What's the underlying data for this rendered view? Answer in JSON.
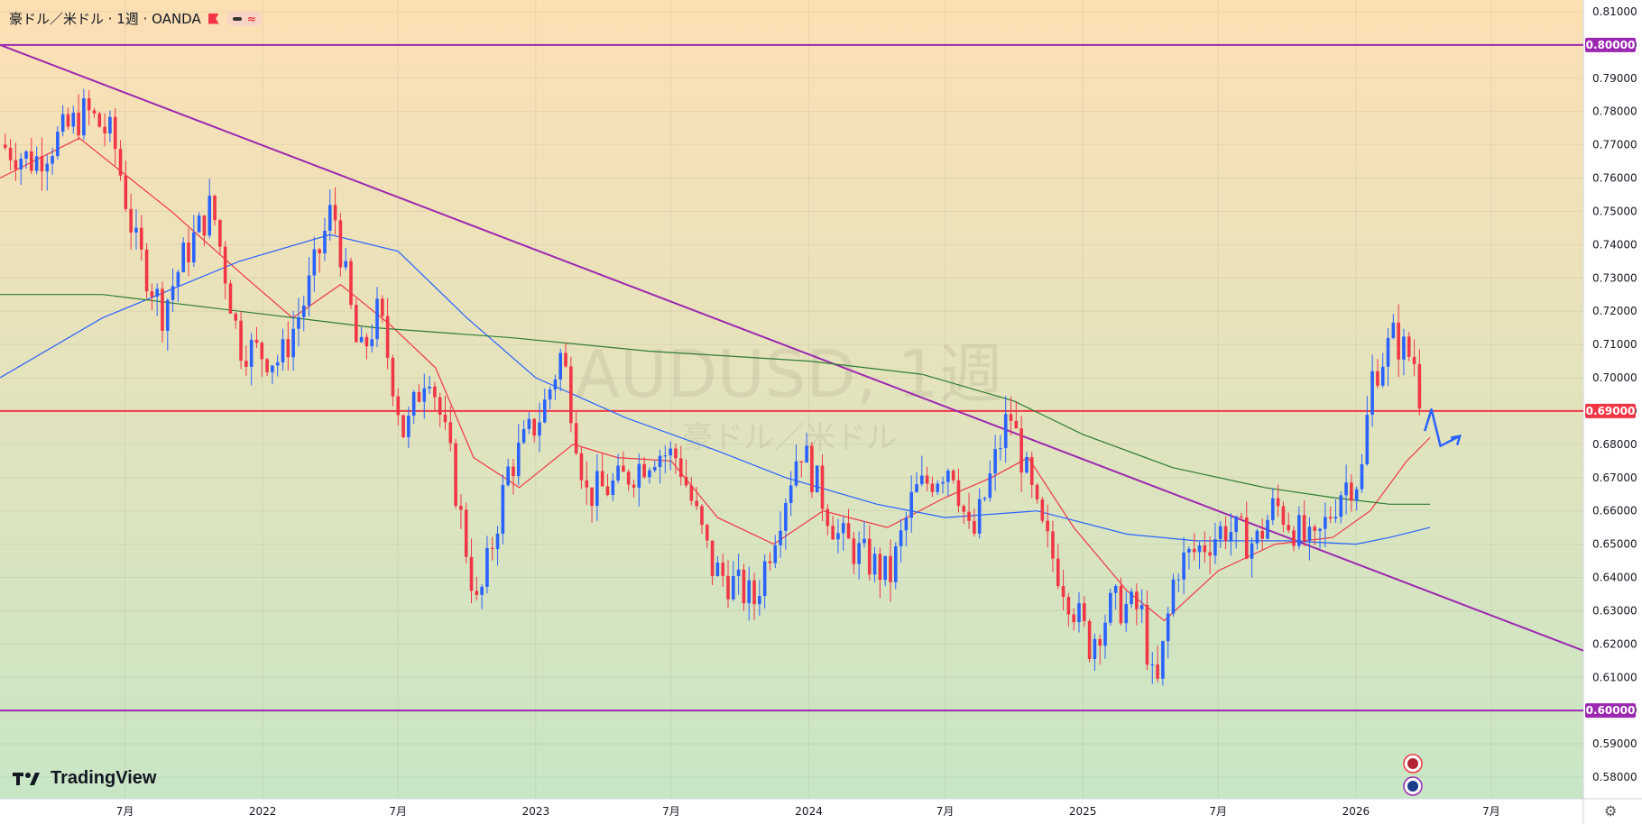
{
  "header": {
    "title": "豪ドル／米ドル · 1週 · OANDA",
    "pill_icon": "minus-approx-icon"
  },
  "watermark": {
    "main": "AUDUSD, 1週",
    "sub": "豪ドル／米ドル"
  },
  "branding": {
    "logo_text": "TradingView"
  },
  "colors": {
    "bg_top": "#fde0b4",
    "bg_bottom": "#c8e6c6",
    "bull": "#2962ff",
    "bear": "#f23645",
    "ma_fast": "#f23645",
    "ma_mid": "#2962ff",
    "ma_slow": "#2e7d32",
    "trendline": "#9c27b0",
    "hline_purple": "#9c27b0",
    "hline_red": "#f23645",
    "axis_text": "#131722"
  },
  "chart_data": {
    "type": "candlestick",
    "symbol": "AUDUSD",
    "timeframe": "1週",
    "broker": "OANDA",
    "y_ticks": [
      "0.81000",
      "0.80000",
      "0.79000",
      "0.78000",
      "0.77000",
      "0.76000",
      "0.75000",
      "0.74000",
      "0.73000",
      "0.72000",
      "0.71000",
      "0.70000",
      "0.69000",
      "0.68000",
      "0.67000",
      "0.66000",
      "0.65000",
      "0.64000",
      "0.63000",
      "0.62000",
      "0.61000",
      "0.60000",
      "0.59000",
      "0.58000"
    ],
    "ylim": [
      0.5735,
      0.8135
    ],
    "x_ticks": [
      {
        "date": "2021-07",
        "label": "7月"
      },
      {
        "date": "2022-01",
        "label": "2022"
      },
      {
        "date": "2022-07",
        "label": "7月"
      },
      {
        "date": "2023-01",
        "label": "2023"
      },
      {
        "date": "2023-07",
        "label": "7月"
      },
      {
        "date": "2024-01",
        "label": "2024"
      },
      {
        "date": "2024-07",
        "label": "7月"
      },
      {
        "date": "2025-01",
        "label": "2025"
      },
      {
        "date": "2025-07",
        "label": "7月"
      },
      {
        "date": "2026-01",
        "label": "2026"
      },
      {
        "date": "2026-07",
        "label": "7月"
      }
    ],
    "xlim": [
      "2021-01-15",
      "2026-11-01"
    ],
    "horizontal_lines": [
      {
        "value": 0.8,
        "label": "0.80000",
        "color": "#9c27b0"
      },
      {
        "value": 0.69,
        "label": "0.69000",
        "color": "#f23645"
      },
      {
        "value": 0.6,
        "label": "0.60000",
        "color": "#9c27b0"
      }
    ],
    "trendline": {
      "start": {
        "date": "2021-01-15",
        "value": 0.8
      },
      "end": {
        "date": "2026-11-01",
        "value": 0.618
      }
    },
    "price_path": [
      {
        "date": "2021-01-15",
        "value": 0.77
      },
      {
        "date": "2021-03-01",
        "value": 0.765
      },
      {
        "date": "2021-05-10",
        "value": 0.78
      },
      {
        "date": "2021-06-15",
        "value": 0.772
      },
      {
        "date": "2021-07-15",
        "value": 0.74
      },
      {
        "date": "2021-08-20",
        "value": 0.72
      },
      {
        "date": "2021-09-15",
        "value": 0.735
      },
      {
        "date": "2021-10-25",
        "value": 0.752
      },
      {
        "date": "2021-12-01",
        "value": 0.71
      },
      {
        "date": "2022-01-25",
        "value": 0.705
      },
      {
        "date": "2022-03-01",
        "value": 0.725
      },
      {
        "date": "2022-04-05",
        "value": 0.752
      },
      {
        "date": "2022-05-10",
        "value": 0.705
      },
      {
        "date": "2022-06-05",
        "value": 0.72
      },
      {
        "date": "2022-07-10",
        "value": 0.682
      },
      {
        "date": "2022-08-10",
        "value": 0.705
      },
      {
        "date": "2022-09-10",
        "value": 0.674
      },
      {
        "date": "2022-10-15",
        "value": 0.63
      },
      {
        "date": "2022-11-25",
        "value": 0.672
      },
      {
        "date": "2023-01-10",
        "value": 0.69
      },
      {
        "date": "2023-02-05",
        "value": 0.708
      },
      {
        "date": "2023-03-10",
        "value": 0.665
      },
      {
        "date": "2023-04-20",
        "value": 0.668
      },
      {
        "date": "2023-06-10",
        "value": 0.678
      },
      {
        "date": "2023-07-10",
        "value": 0.676
      },
      {
        "date": "2023-08-25",
        "value": 0.643
      },
      {
        "date": "2023-10-20",
        "value": 0.633
      },
      {
        "date": "2023-12-20",
        "value": 0.68
      },
      {
        "date": "2024-02-10",
        "value": 0.652
      },
      {
        "date": "2024-04-18",
        "value": 0.64
      },
      {
        "date": "2024-05-20",
        "value": 0.665
      },
      {
        "date": "2024-07-10",
        "value": 0.675
      },
      {
        "date": "2024-08-05",
        "value": 0.65
      },
      {
        "date": "2024-09-25",
        "value": 0.69
      },
      {
        "date": "2024-11-05",
        "value": 0.655
      },
      {
        "date": "2025-01-10",
        "value": 0.62
      },
      {
        "date": "2025-02-10",
        "value": 0.632
      },
      {
        "date": "2025-03-20",
        "value": 0.63
      },
      {
        "date": "2025-04-08",
        "value": 0.603
      },
      {
        "date": "2025-05-05",
        "value": 0.643
      },
      {
        "date": "2025-07-10",
        "value": 0.655
      },
      {
        "date": "2025-08-20",
        "value": 0.65
      },
      {
        "date": "2025-09-15",
        "value": 0.662
      },
      {
        "date": "2025-11-05",
        "value": 0.648
      },
      {
        "date": "2025-12-15",
        "value": 0.668
      },
      {
        "date": "2026-01-08",
        "value": 0.67
      },
      {
        "date": "2026-01-22",
        "value": 0.7
      },
      {
        "date": "2026-02-20",
        "value": 0.712
      },
      {
        "date": "2026-03-20",
        "value": 0.705
      },
      {
        "date": "2026-04-01",
        "value": 0.688
      }
    ],
    "moving_averages": [
      {
        "color": "#f23645",
        "points": [
          {
            "date": "2021-01-15",
            "value": 0.76
          },
          {
            "date": "2021-05-01",
            "value": 0.772
          },
          {
            "date": "2021-09-01",
            "value": 0.75
          },
          {
            "date": "2021-12-10",
            "value": 0.73
          },
          {
            "date": "2022-02-10",
            "value": 0.718
          },
          {
            "date": "2022-04-15",
            "value": 0.728
          },
          {
            "date": "2022-06-20",
            "value": 0.716
          },
          {
            "date": "2022-08-20",
            "value": 0.703
          },
          {
            "date": "2022-10-10",
            "value": 0.676
          },
          {
            "date": "2022-12-10",
            "value": 0.667
          },
          {
            "date": "2023-02-20",
            "value": 0.68
          },
          {
            "date": "2023-04-20",
            "value": 0.676
          },
          {
            "date": "2023-07-01",
            "value": 0.675
          },
          {
            "date": "2023-09-01",
            "value": 0.658
          },
          {
            "date": "2023-11-15",
            "value": 0.65
          },
          {
            "date": "2024-01-20",
            "value": 0.66
          },
          {
            "date": "2024-04-15",
            "value": 0.655
          },
          {
            "date": "2024-07-01",
            "value": 0.664
          },
          {
            "date": "2024-09-01",
            "value": 0.67
          },
          {
            "date": "2024-10-20",
            "value": 0.676
          },
          {
            "date": "2024-12-20",
            "value": 0.655
          },
          {
            "date": "2025-03-01",
            "value": 0.636
          },
          {
            "date": "2025-04-20",
            "value": 0.627
          },
          {
            "date": "2025-07-01",
            "value": 0.642
          },
          {
            "date": "2025-09-15",
            "value": 0.65
          },
          {
            "date": "2025-12-01",
            "value": 0.652
          },
          {
            "date": "2026-01-20",
            "value": 0.66
          },
          {
            "date": "2026-03-10",
            "value": 0.675
          },
          {
            "date": "2026-04-10",
            "value": 0.682
          }
        ]
      },
      {
        "color": "#2962ff",
        "points": [
          {
            "date": "2021-01-15",
            "value": 0.7
          },
          {
            "date": "2021-06-01",
            "value": 0.718
          },
          {
            "date": "2021-12-01",
            "value": 0.735
          },
          {
            "date": "2022-04-01",
            "value": 0.743
          },
          {
            "date": "2022-07-01",
            "value": 0.738
          },
          {
            "date": "2022-10-01",
            "value": 0.718
          },
          {
            "date": "2023-01-01",
            "value": 0.7
          },
          {
            "date": "2023-05-01",
            "value": 0.688
          },
          {
            "date": "2023-09-01",
            "value": 0.678
          },
          {
            "date": "2023-12-01",
            "value": 0.67
          },
          {
            "date": "2024-04-01",
            "value": 0.662
          },
          {
            "date": "2024-07-01",
            "value": 0.658
          },
          {
            "date": "2024-11-01",
            "value": 0.66
          },
          {
            "date": "2025-03-01",
            "value": 0.653
          },
          {
            "date": "2025-06-01",
            "value": 0.651
          },
          {
            "date": "2025-10-01",
            "value": 0.651
          },
          {
            "date": "2026-01-01",
            "value": 0.65
          },
          {
            "date": "2026-02-15",
            "value": 0.652
          },
          {
            "date": "2026-04-10",
            "value": 0.655
          }
        ]
      },
      {
        "color": "#2e7d32",
        "points": [
          {
            "date": "2021-01-15",
            "value": 0.725
          },
          {
            "date": "2021-06-01",
            "value": 0.725
          },
          {
            "date": "2021-12-01",
            "value": 0.72
          },
          {
            "date": "2022-06-01",
            "value": 0.715
          },
          {
            "date": "2022-12-01",
            "value": 0.712
          },
          {
            "date": "2023-06-01",
            "value": 0.708
          },
          {
            "date": "2024-01-01",
            "value": 0.705
          },
          {
            "date": "2024-06-01",
            "value": 0.701
          },
          {
            "date": "2024-10-01",
            "value": 0.693
          },
          {
            "date": "2025-01-01",
            "value": 0.683
          },
          {
            "date": "2025-05-01",
            "value": 0.673
          },
          {
            "date": "2025-09-01",
            "value": 0.667
          },
          {
            "date": "2025-12-01",
            "value": 0.664
          },
          {
            "date": "2026-02-15",
            "value": 0.662
          },
          {
            "date": "2026-04-10",
            "value": 0.662
          }
        ]
      }
    ],
    "annotation_arrow": {
      "points": [
        {
          "date": "2026-04-03",
          "value": 0.684
        },
        {
          "date": "2026-04-12",
          "value": 0.6905
        },
        {
          "date": "2026-04-24",
          "value": 0.6795
        },
        {
          "date": "2026-05-20",
          "value": 0.6825
        }
      ],
      "color": "#2962ff"
    }
  }
}
